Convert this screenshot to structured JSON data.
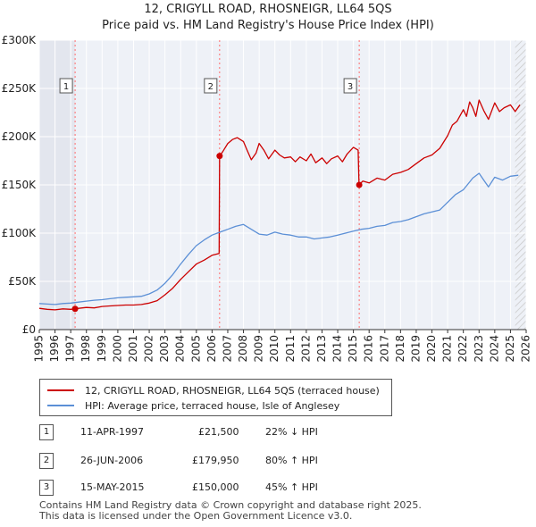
{
  "chart_data": {
    "type": "line",
    "title": "12, CRIGYLL ROAD, RHOSNEIGR, LL64 5QS",
    "subtitle": "Price paid vs. HM Land Registry's House Price Index (HPI)",
    "xlim": [
      1995,
      2026
    ],
    "ylim": [
      0,
      300000
    ],
    "x_ticks": [
      "1995",
      "1996",
      "1997",
      "1998",
      "1999",
      "2000",
      "2001",
      "2002",
      "2003",
      "2004",
      "2005",
      "2006",
      "2007",
      "2008",
      "2009",
      "2010",
      "2011",
      "2012",
      "2013",
      "2014",
      "2015",
      "2016",
      "2017",
      "2018",
      "2019",
      "2020",
      "2021",
      "2022",
      "2023",
      "2024",
      "2025",
      "2026"
    ],
    "y_ticks": [
      {
        "value": 0,
        "label": "£0"
      },
      {
        "value": 50000,
        "label": "£50K"
      },
      {
        "value": 100000,
        "label": "£100K"
      },
      {
        "value": 150000,
        "label": "£150K"
      },
      {
        "value": 200000,
        "label": "£200K"
      },
      {
        "value": 250000,
        "label": "£250K"
      },
      {
        "value": 300000,
        "label": "£300K"
      }
    ],
    "shade_until": 1997.28,
    "hatch_from": 2025.3,
    "series": [
      {
        "name": "12, CRIGYLL ROAD, RHOSNEIGR, LL64 5QS (terraced house)",
        "color": "#cc0000",
        "x": [
          1995,
          1995.5,
          1996,
          1996.5,
          1997,
          1997.28,
          1997.5,
          1998,
          1998.5,
          1999,
          1999.5,
          2000,
          2000.5,
          2001,
          2001.5,
          2002,
          2002.5,
          2003,
          2003.5,
          2004,
          2004.5,
          2005,
          2005.5,
          2006,
          2006.45,
          2006.48,
          2006.7,
          2007,
          2007.3,
          2007.6,
          2008,
          2008.2,
          2008.5,
          2008.8,
          2009,
          2009.3,
          2009.6,
          2010,
          2010.3,
          2010.6,
          2011,
          2011.3,
          2011.6,
          2012,
          2012.3,
          2012.6,
          2013,
          2013.3,
          2013.6,
          2014,
          2014.3,
          2014.6,
          2015,
          2015.3,
          2015.36,
          2015.6,
          2016,
          2016.5,
          2017,
          2017.5,
          2018,
          2018.5,
          2019,
          2019.5,
          2020,
          2020.5,
          2021,
          2021.3,
          2021.6,
          2022,
          2022.2,
          2022.4,
          2022.6,
          2022.8,
          2023,
          2023.3,
          2023.6,
          2024,
          2024.3,
          2024.6,
          2025,
          2025.3,
          2025.6
        ],
        "y": [
          22000,
          21000,
          20500,
          21500,
          21000,
          21500,
          22000,
          23000,
          22500,
          24000,
          24500,
          25000,
          25500,
          25500,
          26000,
          27500,
          30000,
          36000,
          43000,
          52000,
          60000,
          68000,
          72000,
          77000,
          79000,
          179950,
          185000,
          193000,
          197000,
          199000,
          195000,
          187000,
          176000,
          183000,
          193000,
          186000,
          177000,
          186000,
          181000,
          178000,
          179000,
          174000,
          179000,
          175000,
          182000,
          173000,
          178000,
          172000,
          177000,
          180000,
          174000,
          182000,
          189000,
          186000,
          150000,
          154000,
          152000,
          157000,
          155000,
          161000,
          163000,
          166000,
          172000,
          178000,
          181000,
          188000,
          201000,
          212000,
          216000,
          228000,
          221000,
          236000,
          230000,
          221000,
          238000,
          227000,
          218000,
          235000,
          226000,
          230000,
          233000,
          226000,
          233000
        ]
      },
      {
        "name": "HPI: Average price, terraced house, Isle of Anglesey",
        "color": "#5b8fd6",
        "x": [
          1995,
          1995.5,
          1996,
          1996.5,
          1997,
          1997.5,
          1998,
          1998.5,
          1999,
          1999.5,
          2000,
          2000.5,
          2001,
          2001.5,
          2002,
          2002.5,
          2003,
          2003.5,
          2004,
          2004.5,
          2005,
          2005.5,
          2006,
          2006.5,
          2007,
          2007.5,
          2008,
          2008.5,
          2009,
          2009.5,
          2010,
          2010.5,
          2011,
          2011.5,
          2012,
          2012.5,
          2013,
          2013.5,
          2014,
          2014.5,
          2015,
          2015.5,
          2016,
          2016.5,
          2017,
          2017.5,
          2018,
          2018.5,
          2019,
          2019.5,
          2020,
          2020.5,
          2021,
          2021.5,
          2022,
          2022.3,
          2022.6,
          2023,
          2023.3,
          2023.6,
          2024,
          2024.5,
          2025,
          2025.5
        ],
        "y": [
          27000,
          26500,
          26000,
          27000,
          27500,
          28500,
          29500,
          30500,
          31000,
          32000,
          33000,
          33500,
          34000,
          34500,
          37000,
          41000,
          48000,
          57000,
          68000,
          78000,
          87000,
          93000,
          98000,
          101000,
          104000,
          107000,
          109000,
          104000,
          99000,
          98000,
          101000,
          99000,
          98000,
          96000,
          96000,
          94000,
          95000,
          96000,
          98000,
          100000,
          102000,
          104000,
          105000,
          107000,
          108000,
          111000,
          112000,
          114000,
          117000,
          120000,
          122000,
          124000,
          132000,
          140000,
          145000,
          151000,
          157000,
          162000,
          155000,
          148000,
          158000,
          155000,
          159000,
          160000
        ]
      }
    ],
    "sales": [
      {
        "label": "1",
        "year": 1997.28,
        "price": 21500
      },
      {
        "label": "2",
        "year": 2006.48,
        "price": 179950
      },
      {
        "label": "3",
        "year": 2015.37,
        "price": 150000
      }
    ]
  },
  "legend": {
    "red_label": "12, CRIGYLL ROAD, RHOSNEIGR, LL64 5QS (terraced house)",
    "blue_label": "HPI: Average price, terraced house, Isle of Anglesey"
  },
  "transactions": [
    {
      "num": "1",
      "date": "11-APR-1997",
      "price": "£21,500",
      "hpi": "22% ↓ HPI"
    },
    {
      "num": "2",
      "date": "26-JUN-2006",
      "price": "£179,950",
      "hpi": "80% ↑ HPI"
    },
    {
      "num": "3",
      "date": "15-MAY-2015",
      "price": "£150,000",
      "hpi": "45% ↑ HPI"
    }
  ],
  "footer": {
    "line1": "Contains HM Land Registry data © Crown copyright and database right 2025.",
    "line2": "This data is licensed under the Open Government Licence v3.0."
  }
}
